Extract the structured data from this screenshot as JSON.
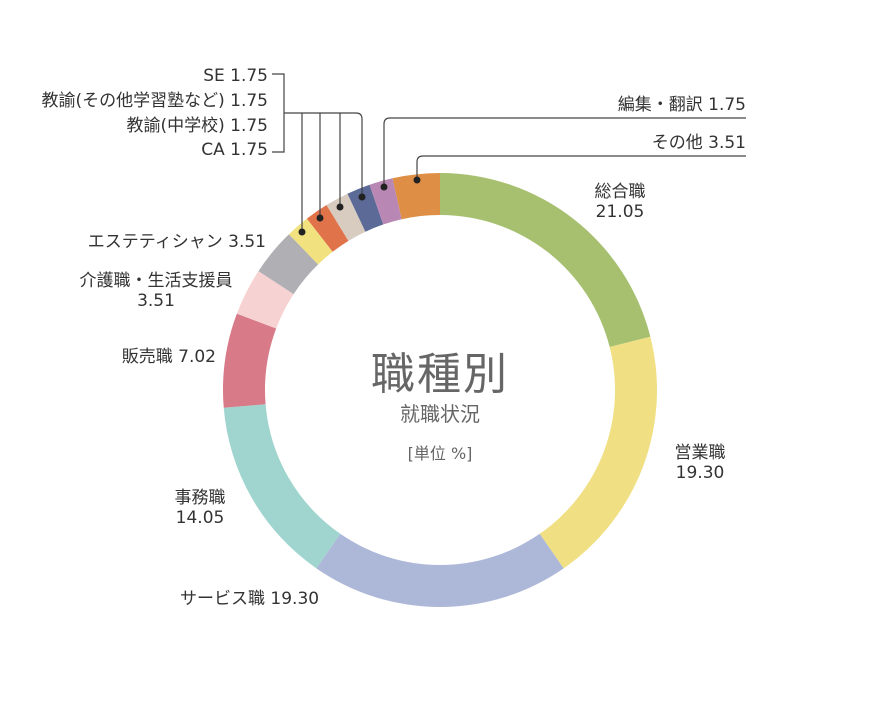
{
  "chart_data": {
    "type": "pie",
    "title": "職種別",
    "subtitle": "就職状況",
    "unit": "[単位 %]",
    "donut": true,
    "slices": [
      {
        "label": "総合職",
        "value": 21.05,
        "color": "#a7c070"
      },
      {
        "label": "営業職",
        "value": 19.3,
        "color": "#f0e083"
      },
      {
        "label": "サービス職",
        "value": 19.3,
        "color": "#adb8d8"
      },
      {
        "label": "事務職",
        "value": 14.05,
        "color": "#a0d5cf"
      },
      {
        "label": "販売職",
        "value": 7.02,
        "color": "#d87a88"
      },
      {
        "label": "介護職・生活支援員",
        "value": 3.51,
        "color": "#f6d2d3"
      },
      {
        "label": "エステティシャン",
        "value": 3.51,
        "color": "#b0afb3"
      },
      {
        "label": "CA",
        "value": 1.75,
        "color": "#f1e27f"
      },
      {
        "label": "教諭（中学校）",
        "value": 1.75,
        "color": "#e0734a"
      },
      {
        "label": "教諭（その他学習塾など）",
        "value": 1.75,
        "color": "#d8cbc0"
      },
      {
        "label": "SE",
        "value": 1.75,
        "color": "#5b6a96"
      },
      {
        "label": "編集・翻訳",
        "value": 1.75,
        "color": "#b987b4"
      },
      {
        "label": "その他",
        "value": 3.51,
        "color": "#de8f45"
      }
    ],
    "labels": {
      "s0": "総合職",
      "v0": "21.05",
      "s1": "営業職",
      "v1": "19.30",
      "s2": "サービス職 19.30",
      "s3": "事務職",
      "v3": "14.05",
      "s4": "販売職 7.02",
      "s5": "介護職・生活支援員",
      "v5": "3.51",
      "s6": "エステティシャン 3.51",
      "se": "SE 1.75",
      "kyo2": "教諭(その他学習塾など) 1.75",
      "kyo1": "教諭(中学校) 1.75",
      "ca": "CA 1.75",
      "hen": "編集・翻訳 1.75",
      "oth": "その他 3.51"
    }
  }
}
